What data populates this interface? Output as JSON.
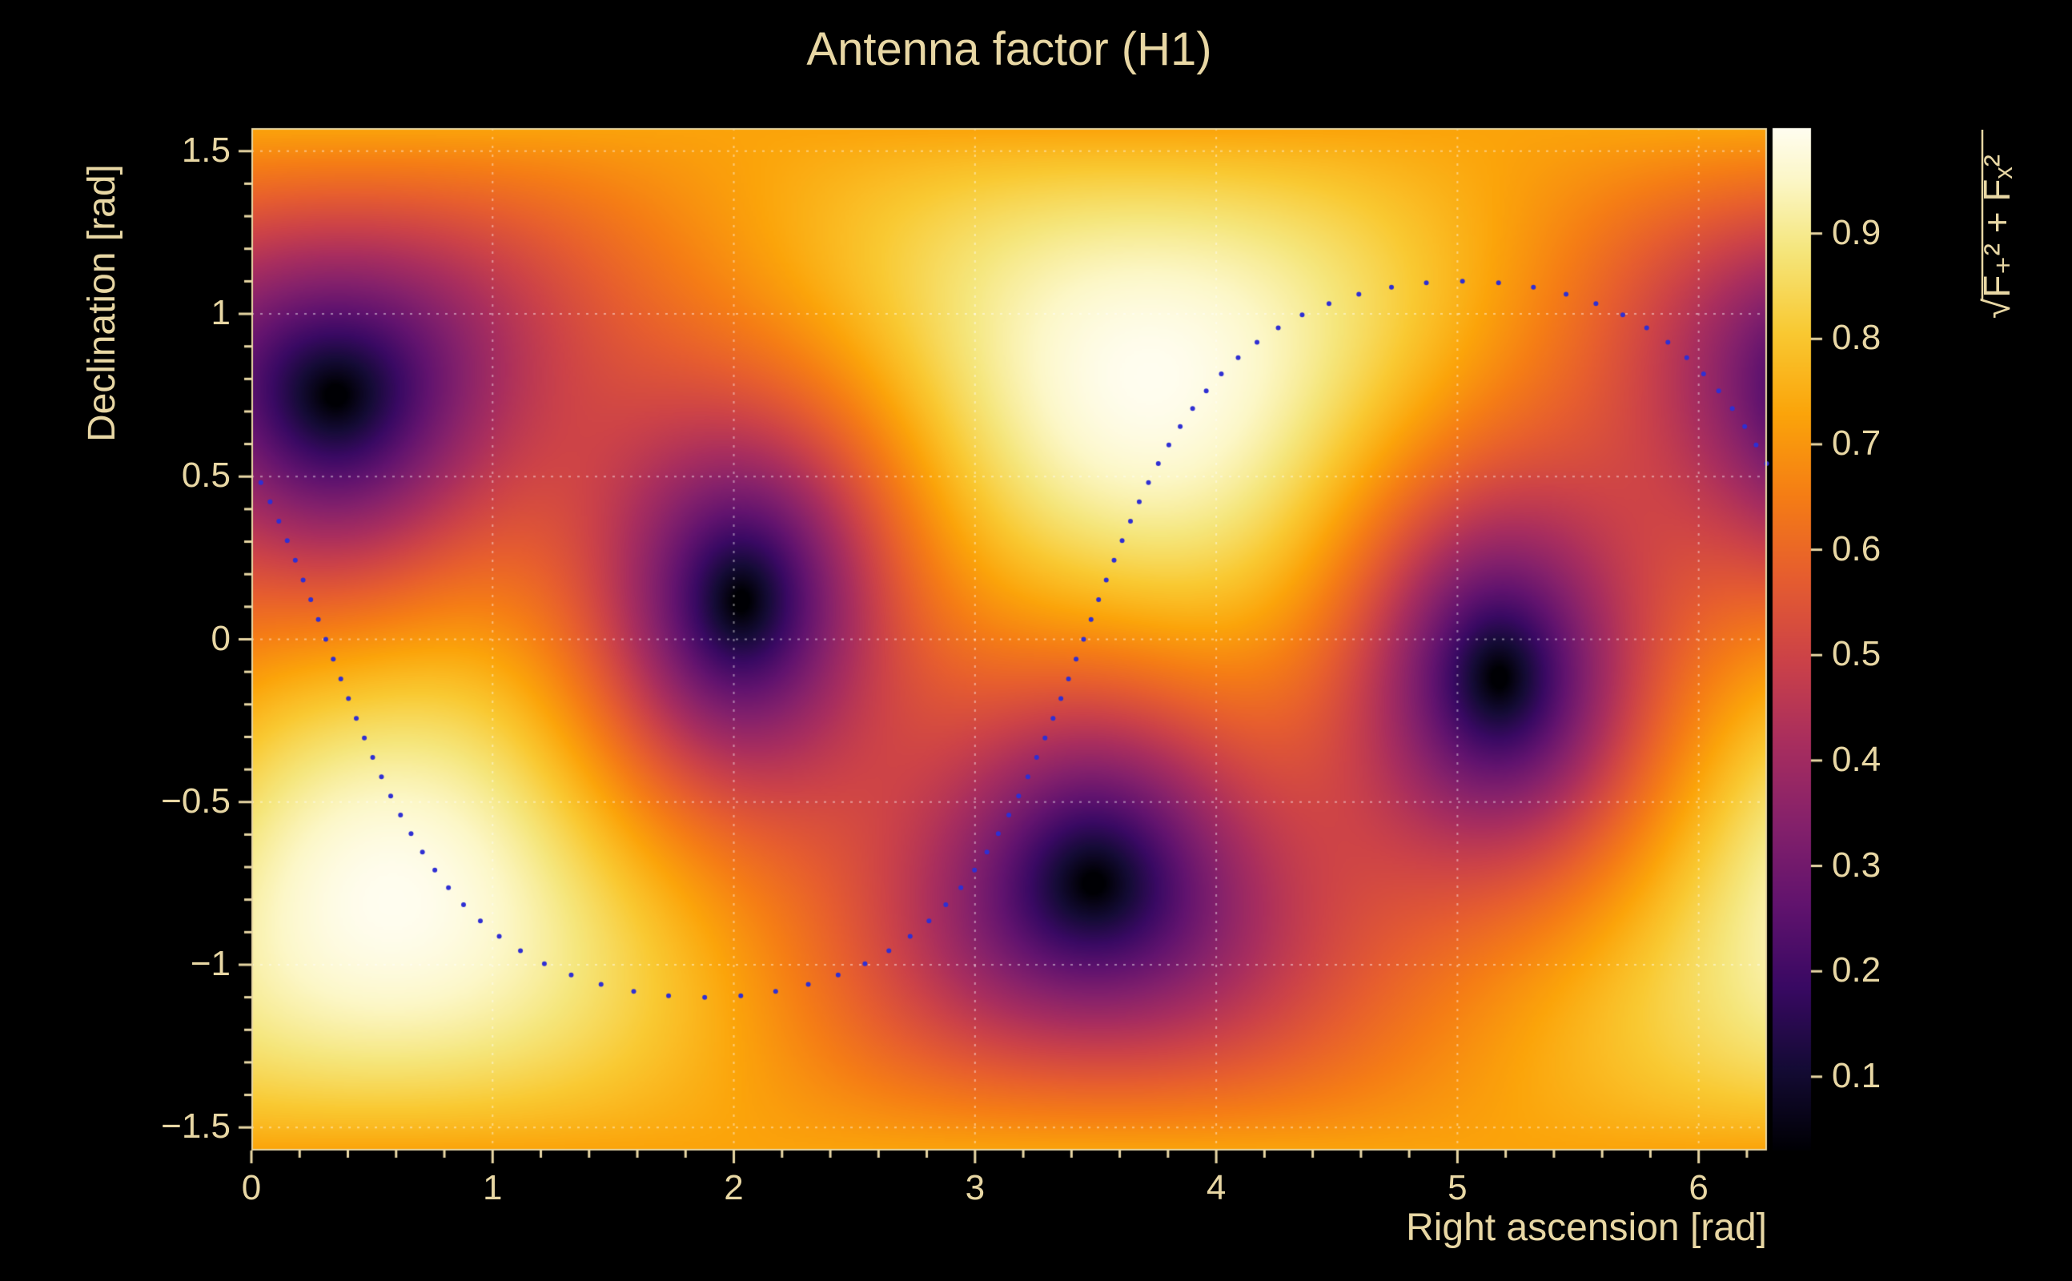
{
  "window": {
    "canvas_background": "#000000",
    "text_color": "#e8d7a4",
    "axis_color": "#e8d7a4"
  },
  "chart_data": {
    "type": "heatmap",
    "title": "Antenna factor (H1)",
    "xlabel": "Right ascension [rad]",
    "ylabel": "Declination [rad]",
    "colorbar_label": {
      "radical": "√",
      "expr": "F₊² + Fₓ²"
    },
    "xlim": [
      0,
      6.2832
    ],
    "ylim": [
      -1.5708,
      1.5708
    ],
    "zlim": [
      0.03,
      1.0
    ],
    "x_tick_values": [
      0,
      1,
      2,
      3,
      4,
      5,
      6
    ],
    "x_tick_labels": [
      "0",
      "1",
      "2",
      "3",
      "4",
      "5",
      "6"
    ],
    "x_minor_step": 0.2,
    "y_tick_values": [
      -1.5,
      -1,
      -0.5,
      0,
      0.5,
      1,
      1.5
    ],
    "y_tick_labels": [
      "−1.5",
      "−1",
      "−0.5",
      "0",
      "0.5",
      "1",
      "1.5"
    ],
    "y_minor_step": 0.1,
    "colorbar_tick_values": [
      0.1,
      0.2,
      0.3,
      0.4,
      0.5,
      0.6,
      0.7,
      0.8,
      0.9
    ],
    "colorbar_tick_labels": [
      "0.1",
      "0.2",
      "0.3",
      "0.4",
      "0.5",
      "0.6",
      "0.7",
      "0.8",
      "0.9"
    ],
    "grid": {
      "show": true,
      "color": "rgba(255,255,255,0.45)",
      "dash": [
        3,
        8
      ]
    },
    "field": {
      "kind": "interferometer_antenna_pattern_magnitude_sqrt_Fplus2_plus_Fcross2",
      "null_points_radec": [
        [
          0.35,
          0.75
        ],
        [
          2.05,
          0.1
        ]
      ],
      "antipodal_null_points_radec": [
        [
          3.49,
          -0.75
        ],
        [
          5.19,
          -0.1
        ]
      ],
      "maxima_radec": [
        [
          3.73,
          0.81
        ],
        [
          0.59,
          -0.81
        ]
      ],
      "peak_value": 1.0
    },
    "track": {
      "kind": "inclined_circle_sky_track",
      "style": "dotted",
      "color": "#2f2fd3",
      "dot_radius": 3,
      "points": 92,
      "inclination_rad": 1.1,
      "ascending_node_ra_rad": 3.45,
      "max_declination_rad": 1.1
    },
    "palette": {
      "name": "dark-body-inferno-like",
      "stops": [
        [
          0.0,
          "#000004"
        ],
        [
          0.08,
          "#140b35"
        ],
        [
          0.16,
          "#390963"
        ],
        [
          0.24,
          "#61136e"
        ],
        [
          0.32,
          "#85216b"
        ],
        [
          0.4,
          "#a92e5e"
        ],
        [
          0.48,
          "#cc4248"
        ],
        [
          0.56,
          "#e65d2f"
        ],
        [
          0.64,
          "#f57d15"
        ],
        [
          0.72,
          "#fba40a"
        ],
        [
          0.8,
          "#f9c932"
        ],
        [
          0.88,
          "#f5e67c"
        ],
        [
          0.95,
          "#fcf7c8"
        ],
        [
          1.0,
          "#fffdf0"
        ]
      ]
    }
  }
}
